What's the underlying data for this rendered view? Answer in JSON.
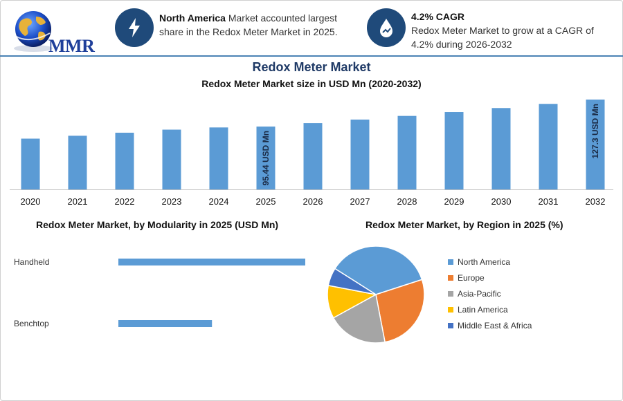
{
  "logo": {
    "text": "MMR"
  },
  "info_1": {
    "strong": "North America",
    "text": " Market accounted largest share in the Redox Meter Market in 2025.",
    "icon": "lightning-icon"
  },
  "info_2": {
    "heading": "4.2% CAGR",
    "text": "Redox Meter Market to grow at a CAGR of 4.2% during 2026-2032",
    "icon": "growth-drop-icon"
  },
  "chart_data": [
    {
      "type": "bar",
      "title": "Redox Meter Market",
      "subtitle": "Redox Meter Market size in USD Mn (2020-2032)",
      "categories": [
        "2020",
        "2021",
        "2022",
        "2023",
        "2024",
        "2025",
        "2026",
        "2027",
        "2028",
        "2029",
        "2030",
        "2031",
        "2032"
      ],
      "values": [
        81.2,
        84.6,
        88.2,
        91.8,
        94.4,
        95.44,
        99.5,
        103.7,
        108.0,
        112.6,
        117.3,
        122.2,
        127.3
      ],
      "data_labels": {
        "2025": "95.44 USD Mn",
        "2032": "127.3 USD Mn"
      },
      "color": "#5b9bd5",
      "grid": false
    },
    {
      "type": "bar",
      "orientation": "horizontal",
      "title": "Redox Meter Market, by Modularity in 2025 (USD Mn)",
      "categories": [
        "Handheld",
        "Benchtop"
      ],
      "values": [
        60.9,
        30.5
      ],
      "color": "#5b9bd5"
    },
    {
      "type": "pie",
      "title": "Redox Meter Market, by Region in 2025 (%)",
      "labels": [
        "North America",
        "Europe",
        "Asia-Pacific",
        "Latin America",
        "Middle East & Africa"
      ],
      "values": [
        36,
        27,
        20,
        11,
        6
      ],
      "colors": [
        "#5b9bd5",
        "#ed7d31",
        "#a5a5a5",
        "#ffc000",
        "#4472c4"
      ],
      "legend": "right"
    }
  ]
}
